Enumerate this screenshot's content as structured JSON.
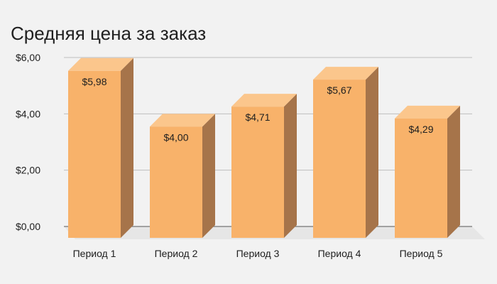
{
  "chart_data": {
    "type": "bar",
    "title": "Средняя цена за заказ",
    "categories": [
      "Период 1",
      "Период 2",
      "Период 3",
      "Период 4",
      "Период 5"
    ],
    "values": [
      5.98,
      4.0,
      4.71,
      5.67,
      4.29
    ],
    "data_labels": [
      "$5,98",
      "$4,00",
      "$4,71",
      "$5,67",
      "$4,29"
    ],
    "y_ticks": [
      0,
      2,
      4,
      6
    ],
    "y_tick_labels": [
      "$0,00",
      "$2,00",
      "$4,00",
      "$6,00"
    ],
    "ylim": [
      0,
      6
    ],
    "grid": true,
    "legend": "none",
    "style": "3d-column",
    "colors": {
      "bar_front": "#f8b26a",
      "bar_top": "#fbc68c",
      "bar_side": "#a6744a",
      "floor": "#e6e6e6",
      "grid": "#bdbdbd",
      "axis": "#555555",
      "text": "#202020",
      "background": "#f2f2f2"
    }
  }
}
